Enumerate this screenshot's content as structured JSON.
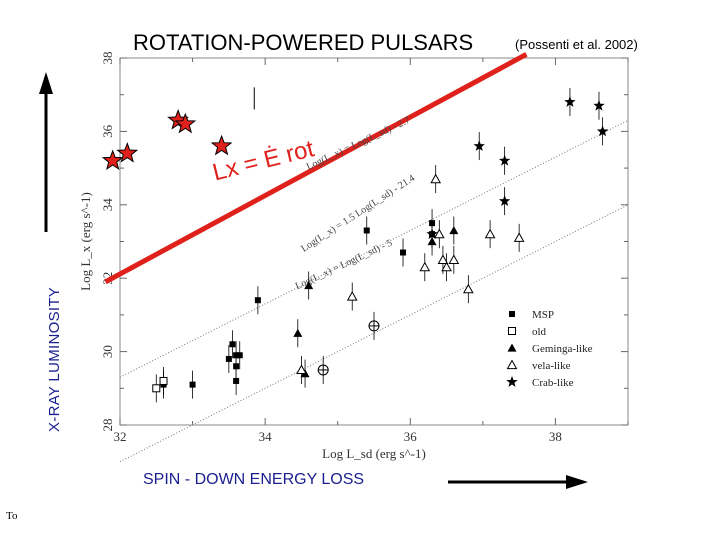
{
  "page": {
    "title": "ROTATION-POWERED PULSARS",
    "citation": "(Possenti et al. 2002)",
    "y_big_label": "X-RAY LUMINOSITY",
    "x_big_label": "SPIN - DOWN ENERGY LOSS",
    "footer": "To"
  },
  "colors": {
    "red": "#e0201b",
    "blue": "#1a1f8f",
    "black": "#000000",
    "gray": "#555555"
  },
  "chart_data": {
    "type": "scatter",
    "xlabel": "Log L_sd (erg s^-1)",
    "ylabel": "Log L_x (erg s^-1)",
    "xlim": [
      32,
      39
    ],
    "ylim": [
      28,
      38
    ],
    "x_ticks": [
      "32",
      "34",
      "36",
      "38"
    ],
    "y_ticks": [
      "28",
      "30",
      "32",
      "34",
      "36",
      "38"
    ],
    "annotations": [
      {
        "text": "Log(L_x) = Log(L_sd) - 2.7"
      },
      {
        "text": "Log(L_x) = 1.5 Log(L_sd) - 21.4"
      },
      {
        "text": "Log(L_x) = Log(L_sd) - 5"
      },
      {
        "text": "Lx = Ė rot"
      }
    ],
    "lines": [
      {
        "name": "red_equality",
        "x": [
          31.8,
          37.6
        ],
        "y": [
          31.9,
          38.1
        ]
      },
      {
        "name": "dotted_upper",
        "x": [
          32,
          39
        ],
        "y": [
          29.3,
          36.3
        ]
      },
      {
        "name": "dotted_lower",
        "x": [
          32,
          39
        ],
        "y": [
          27.0,
          34.0
        ]
      }
    ],
    "legend": {
      "position": "bottom-right",
      "entries": [
        {
          "symbol": "filled-square",
          "label": "MSP"
        },
        {
          "symbol": "open-square",
          "label": "old"
        },
        {
          "symbol": "filled-triangle",
          "label": "Geminga-like"
        },
        {
          "symbol": "open-triangle",
          "label": "vela-like"
        },
        {
          "symbol": "star",
          "label": "Crab-like"
        }
      ]
    },
    "series": [
      {
        "name": "MSP",
        "marker": "filled-square",
        "x": [
          32.6,
          33.0,
          33.5,
          33.55,
          33.6,
          33.6,
          33.6,
          33.65,
          33.9,
          35.4,
          35.9,
          36.3,
          36.3
        ],
        "y": [
          29.1,
          29.1,
          29.8,
          30.2,
          29.9,
          29.6,
          29.2,
          29.9,
          31.4,
          33.3,
          32.7,
          33.5,
          33.2
        ]
      },
      {
        "name": "old",
        "marker": "open-square",
        "x": [
          32.5,
          32.6
        ],
        "y": [
          29.0,
          29.2
        ]
      },
      {
        "name": "Geminga-like",
        "marker": "filled-triangle",
        "x": [
          34.6,
          34.45,
          34.55,
          36.3,
          36.6
        ],
        "y": [
          31.8,
          30.5,
          29.4,
          33.0,
          33.3
        ]
      },
      {
        "name": "vela-like",
        "marker": "open-triangle",
        "x": [
          34.5,
          35.2,
          36.35,
          36.4,
          36.45,
          36.5,
          36.2,
          36.6,
          36.8,
          37.1,
          37.5
        ],
        "y": [
          29.5,
          31.5,
          34.7,
          33.2,
          32.5,
          32.3,
          32.3,
          32.5,
          31.7,
          33.2,
          33.1
        ]
      },
      {
        "name": "Crab-like",
        "marker": "star",
        "x": [
          38.2,
          38.6,
          38.65,
          36.95,
          37.3,
          37.3,
          36.3
        ],
        "y": [
          36.8,
          36.7,
          36.0,
          35.6,
          35.2,
          34.1,
          33.2
        ]
      },
      {
        "name": "pulsar_circle",
        "marker": "circle-plus",
        "x": [
          35.5,
          34.8
        ],
        "y": [
          30.7,
          29.5
        ]
      },
      {
        "name": "red_stars",
        "marker": "red-star",
        "x": [
          31.9,
          32.1,
          32.8,
          32.9,
          33.4
        ],
        "y": [
          35.2,
          35.4,
          36.3,
          36.2,
          35.6
        ]
      }
    ]
  }
}
